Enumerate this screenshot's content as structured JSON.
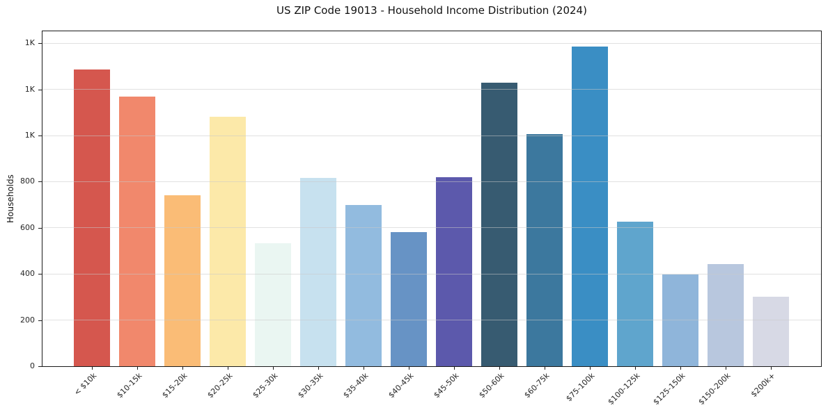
{
  "chart_data": {
    "type": "bar",
    "title": "US ZIP Code 19013 - Household Income Distribution (2024)",
    "xlabel": "",
    "ylabel": "Households",
    "categories": [
      "< $10k",
      "$10-15k",
      "$15-20k",
      "$20-25k",
      "$25-30k",
      "$30-35k",
      "$35-40k",
      "$40-45k",
      "$45-50k",
      "$50-60k",
      "$60-75k",
      "$75-100k",
      "$100-125k",
      "$125-150k",
      "$150-200k",
      "$200k+"
    ],
    "values": [
      1288,
      1170,
      743,
      1084,
      533,
      818,
      700,
      584,
      821,
      1233,
      1007,
      1388,
      629,
      398,
      444,
      302
    ],
    "bar_colors": [
      "#d5574e",
      "#f1886c",
      "#fabc76",
      "#fce9a9",
      "#eaf6f2",
      "#c7e1ef",
      "#92bbdf",
      "#6793c5",
      "#5c59ac",
      "#375b71",
      "#3c789e",
      "#3a8ec4",
      "#5fa5cd",
      "#8fb5da",
      "#b8c7de",
      "#d7d9e5"
    ],
    "ylim": [
      0,
      1455
    ],
    "yticks": [
      {
        "value": 0,
        "label": "0"
      },
      {
        "value": 200,
        "label": "200"
      },
      {
        "value": 400,
        "label": "400"
      },
      {
        "value": 600,
        "label": "600"
      },
      {
        "value": 800,
        "label": "800"
      },
      {
        "value": 1000,
        "label": "1K"
      },
      {
        "value": 1200,
        "label": "1K"
      },
      {
        "value": 1400,
        "label": "1K"
      }
    ],
    "grid": "horizontal",
    "legend": "none"
  }
}
